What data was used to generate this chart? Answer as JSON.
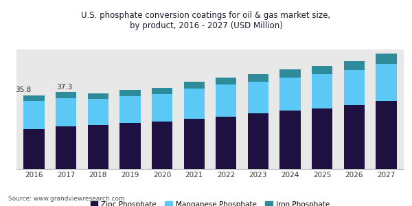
{
  "years": [
    2016,
    2017,
    2018,
    2019,
    2020,
    2021,
    2022,
    2023,
    2024,
    2025,
    2026,
    2027
  ],
  "zinc_phosphate": [
    19.5,
    20.8,
    21.5,
    22.2,
    23.0,
    24.5,
    25.5,
    27.0,
    28.5,
    29.5,
    31.0,
    33.0
  ],
  "manganese_phosphate": [
    13.5,
    13.5,
    12.5,
    13.0,
    13.5,
    14.5,
    15.5,
    15.5,
    16.0,
    16.5,
    17.0,
    18.0
  ],
  "iron_phosphate": [
    2.8,
    3.0,
    2.8,
    3.0,
    3.0,
    3.2,
    3.5,
    3.5,
    3.8,
    4.0,
    4.5,
    5.0
  ],
  "zinc_color": "#1e1040",
  "manganese_color": "#5bc8f5",
  "iron_color": "#2e8b9a",
  "title_line1": "U.S. phosphate conversion coatings for oil & gas market size,",
  "title_line2": "by product, 2016 - 2027 (USD Million)",
  "label_2016": "35.8",
  "label_2017": "37.3",
  "legend_labels": [
    "Zinc Phosphate",
    "Manganese Phosphate",
    "Iron Phosphate"
  ],
  "source_text": "Source: www.grandviewresearch.com",
  "bar_width": 0.65,
  "ylim": [
    0,
    58
  ],
  "background_color": "#ffffff",
  "plot_bg_color": "#e8e8e8",
  "title_color": "#1a1a2e",
  "header_bg_color": "#ddd8ec"
}
